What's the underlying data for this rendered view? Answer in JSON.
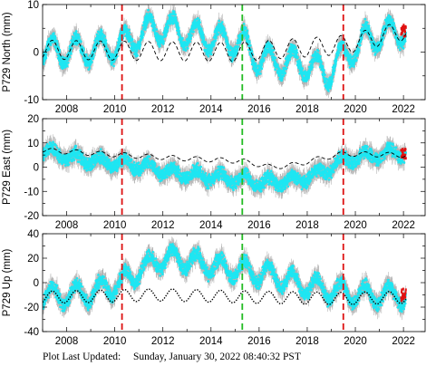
{
  "chart_data": [
    {
      "type": "scatter",
      "title": "",
      "ylabel": "P729 North (mm)",
      "xlim": [
        2007.0,
        2022.9
      ],
      "ylim": [
        -10,
        10
      ],
      "x_ticks": [
        2008,
        2010,
        2012,
        2014,
        2016,
        2018,
        2020,
        2022
      ],
      "y_ticks": [
        -10,
        0,
        10
      ],
      "grid": false,
      "events": [
        {
          "x": 2010.3,
          "color": "#dd1111"
        },
        {
          "x": 2015.3,
          "color": "#22bb22"
        },
        {
          "x": 2019.5,
          "color": "#dd1111"
        }
      ],
      "series": [
        {
          "name": "",
          "style": "cyan points with gray error bars",
          "trend": [
            [
              2007.0,
              0.0
            ],
            [
              2009.0,
              0.5
            ],
            [
              2010.3,
              1.5
            ],
            [
              2011.5,
              5.0
            ],
            [
              2012.5,
              4.5
            ],
            [
              2013.8,
              3.0
            ],
            [
              2015.3,
              2.0
            ],
            [
              2016.0,
              -1.5
            ],
            [
              2017.0,
              -2.0
            ],
            [
              2018.0,
              -2.5
            ],
            [
              2018.8,
              -4.5
            ],
            [
              2019.5,
              -1.0
            ],
            [
              2020.5,
              3.0
            ],
            [
              2021.5,
              4.0
            ],
            [
              2022.0,
              4.5
            ]
          ],
          "seasonal_amplitude": 2.8
        },
        {
          "name": "",
          "style": "black dashed model",
          "trend": [
            [
              2007.0,
              0.5
            ],
            [
              2015.0,
              0.0
            ],
            [
              2019.5,
              1.5
            ],
            [
              2022.0,
              4.5
            ]
          ],
          "seasonal_amplitude": 2.0
        }
      ]
    },
    {
      "type": "scatter",
      "title": "",
      "ylabel": "P729 East (mm)",
      "xlim": [
        2007.0,
        2022.9
      ],
      "ylim": [
        -20,
        20
      ],
      "x_ticks": [
        2008,
        2010,
        2012,
        2014,
        2016,
        2018,
        2020,
        2022
      ],
      "y_ticks": [
        -20,
        -10,
        0,
        10,
        20
      ],
      "grid": false,
      "events": [
        {
          "x": 2010.3,
          "color": "#dd1111"
        },
        {
          "x": 2015.3,
          "color": "#22bb22"
        },
        {
          "x": 2019.5,
          "color": "#dd1111"
        }
      ],
      "series": [
        {
          "name": "",
          "style": "cyan points with gray error bars",
          "trend": [
            [
              2007.0,
              6.5
            ],
            [
              2008.5,
              3.5
            ],
            [
              2010.3,
              1.5
            ],
            [
              2011.5,
              0.0
            ],
            [
              2012.5,
              -2.5
            ],
            [
              2014.0,
              -4.0
            ],
            [
              2015.3,
              -5.0
            ],
            [
              2016.0,
              -6.5
            ],
            [
              2017.5,
              -5.5
            ],
            [
              2018.5,
              -2.5
            ],
            [
              2019.5,
              2.5
            ],
            [
              2020.5,
              5.0
            ],
            [
              2022.0,
              6.0
            ]
          ],
          "seasonal_amplitude": 2.0
        },
        {
          "name": "",
          "style": "black dashed model",
          "trend": [
            [
              2007.0,
              7.0
            ],
            [
              2010.3,
              5.0
            ],
            [
              2013.0,
              3.5
            ],
            [
              2015.3,
              2.5
            ],
            [
              2016.5,
              0.0
            ],
            [
              2017.5,
              1.0
            ],
            [
              2018.5,
              3.5
            ],
            [
              2019.5,
              5.5
            ],
            [
              2022.0,
              5.0
            ]
          ],
          "seasonal_amplitude": 1.0
        }
      ]
    },
    {
      "type": "scatter",
      "title": "",
      "ylabel": "P729 Up (mm)",
      "xlim": [
        2007.0,
        2022.9
      ],
      "ylim": [
        -40,
        40
      ],
      "x_ticks": [
        2008,
        2010,
        2012,
        2014,
        2016,
        2018,
        2020,
        2022
      ],
      "y_ticks": [
        -40,
        -20,
        0,
        20,
        40
      ],
      "grid": false,
      "events": [
        {
          "x": 2010.3,
          "color": "#dd1111"
        },
        {
          "x": 2015.3,
          "color": "#22bb22"
        },
        {
          "x": 2019.5,
          "color": "#dd1111"
        }
      ],
      "series": [
        {
          "name": "",
          "style": "cyan points with gray error bars",
          "trend": [
            [
              2007.0,
              -12.0
            ],
            [
              2009.0,
              -8.0
            ],
            [
              2010.3,
              0.0
            ],
            [
              2011.0,
              10.0
            ],
            [
              2012.0,
              20.0
            ],
            [
              2013.0,
              18.0
            ],
            [
              2014.5,
              12.0
            ],
            [
              2015.3,
              10.0
            ],
            [
              2016.5,
              6.0
            ],
            [
              2017.5,
              0.0
            ],
            [
              2018.5,
              -5.0
            ],
            [
              2019.5,
              -8.0
            ],
            [
              2020.5,
              -10.0
            ],
            [
              2022.0,
              -10.0
            ]
          ],
          "seasonal_amplitude": 8.0
        },
        {
          "name": "",
          "style": "black dotted model",
          "trend": [
            [
              2007.0,
              -12.0
            ],
            [
              2012.0,
              -10.0
            ],
            [
              2016.0,
              -12.0
            ],
            [
              2019.5,
              -13.0
            ],
            [
              2022.0,
              -12.0
            ]
          ],
          "seasonal_amplitude": 5.0
        }
      ]
    }
  ],
  "footer": {
    "label": "Plot Last Updated:",
    "date": "Sunday, January 30, 2022 08:40:32 PST"
  }
}
